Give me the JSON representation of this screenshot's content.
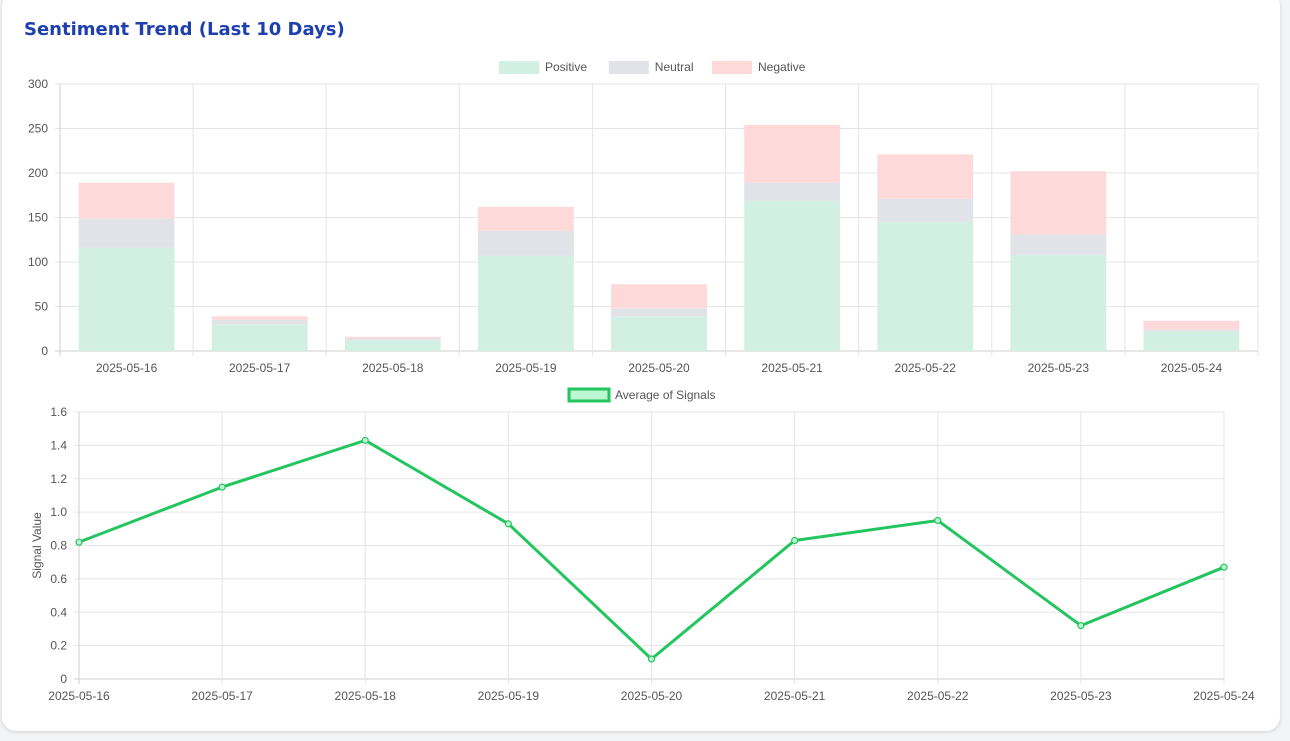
{
  "page": {
    "title": "Sentiment Trend (Last 10 Days)"
  },
  "colors": {
    "positive": "#d1f0e3",
    "neutral": "#e1e3e8",
    "negative": "#fdd9da",
    "line": "#22c55e",
    "line_fill": "#bbf7d0",
    "grid": "#e5e5e5"
  },
  "chart_data": [
    {
      "type": "bar",
      "stacked": true,
      "title": "",
      "categories": [
        "2025-05-16",
        "2025-05-17",
        "2025-05-18",
        "2025-05-19",
        "2025-05-20",
        "2025-05-21",
        "2025-05-22",
        "2025-05-23",
        "2025-05-24"
      ],
      "series": [
        {
          "name": "Positive",
          "values": [
            116,
            30,
            12,
            107,
            39,
            169,
            145,
            108,
            22
          ]
        },
        {
          "name": "Neutral",
          "values": [
            33,
            5,
            2,
            28,
            9,
            20,
            26,
            23,
            2
          ]
        },
        {
          "name": "Negative",
          "values": [
            40,
            4,
            2,
            27,
            27,
            65,
            50,
            71,
            10
          ]
        }
      ],
      "ylim": [
        0,
        300
      ],
      "yticks": [
        0,
        50,
        100,
        150,
        200,
        250,
        300
      ],
      "xlabel": "",
      "ylabel": "",
      "grid": true,
      "legend": "top-center"
    },
    {
      "type": "line",
      "title": "",
      "categories": [
        "2025-05-16",
        "2025-05-17",
        "2025-05-18",
        "2025-05-19",
        "2025-05-20",
        "2025-05-21",
        "2025-05-22",
        "2025-05-23",
        "2025-05-24"
      ],
      "series": [
        {
          "name": "Average of Signals",
          "values": [
            0.82,
            1.15,
            1.43,
            0.93,
            0.12,
            0.83,
            0.95,
            0.32,
            0.67
          ]
        }
      ],
      "ylim": [
        0,
        1.6
      ],
      "yticks": [
        "0",
        "0.2",
        "0.4",
        "0.6",
        "0.8",
        "1.0",
        "1.2",
        "1.4",
        "1.6"
      ],
      "xlabel": "",
      "ylabel": "Signal Value",
      "grid": true,
      "legend": "top-center"
    }
  ]
}
